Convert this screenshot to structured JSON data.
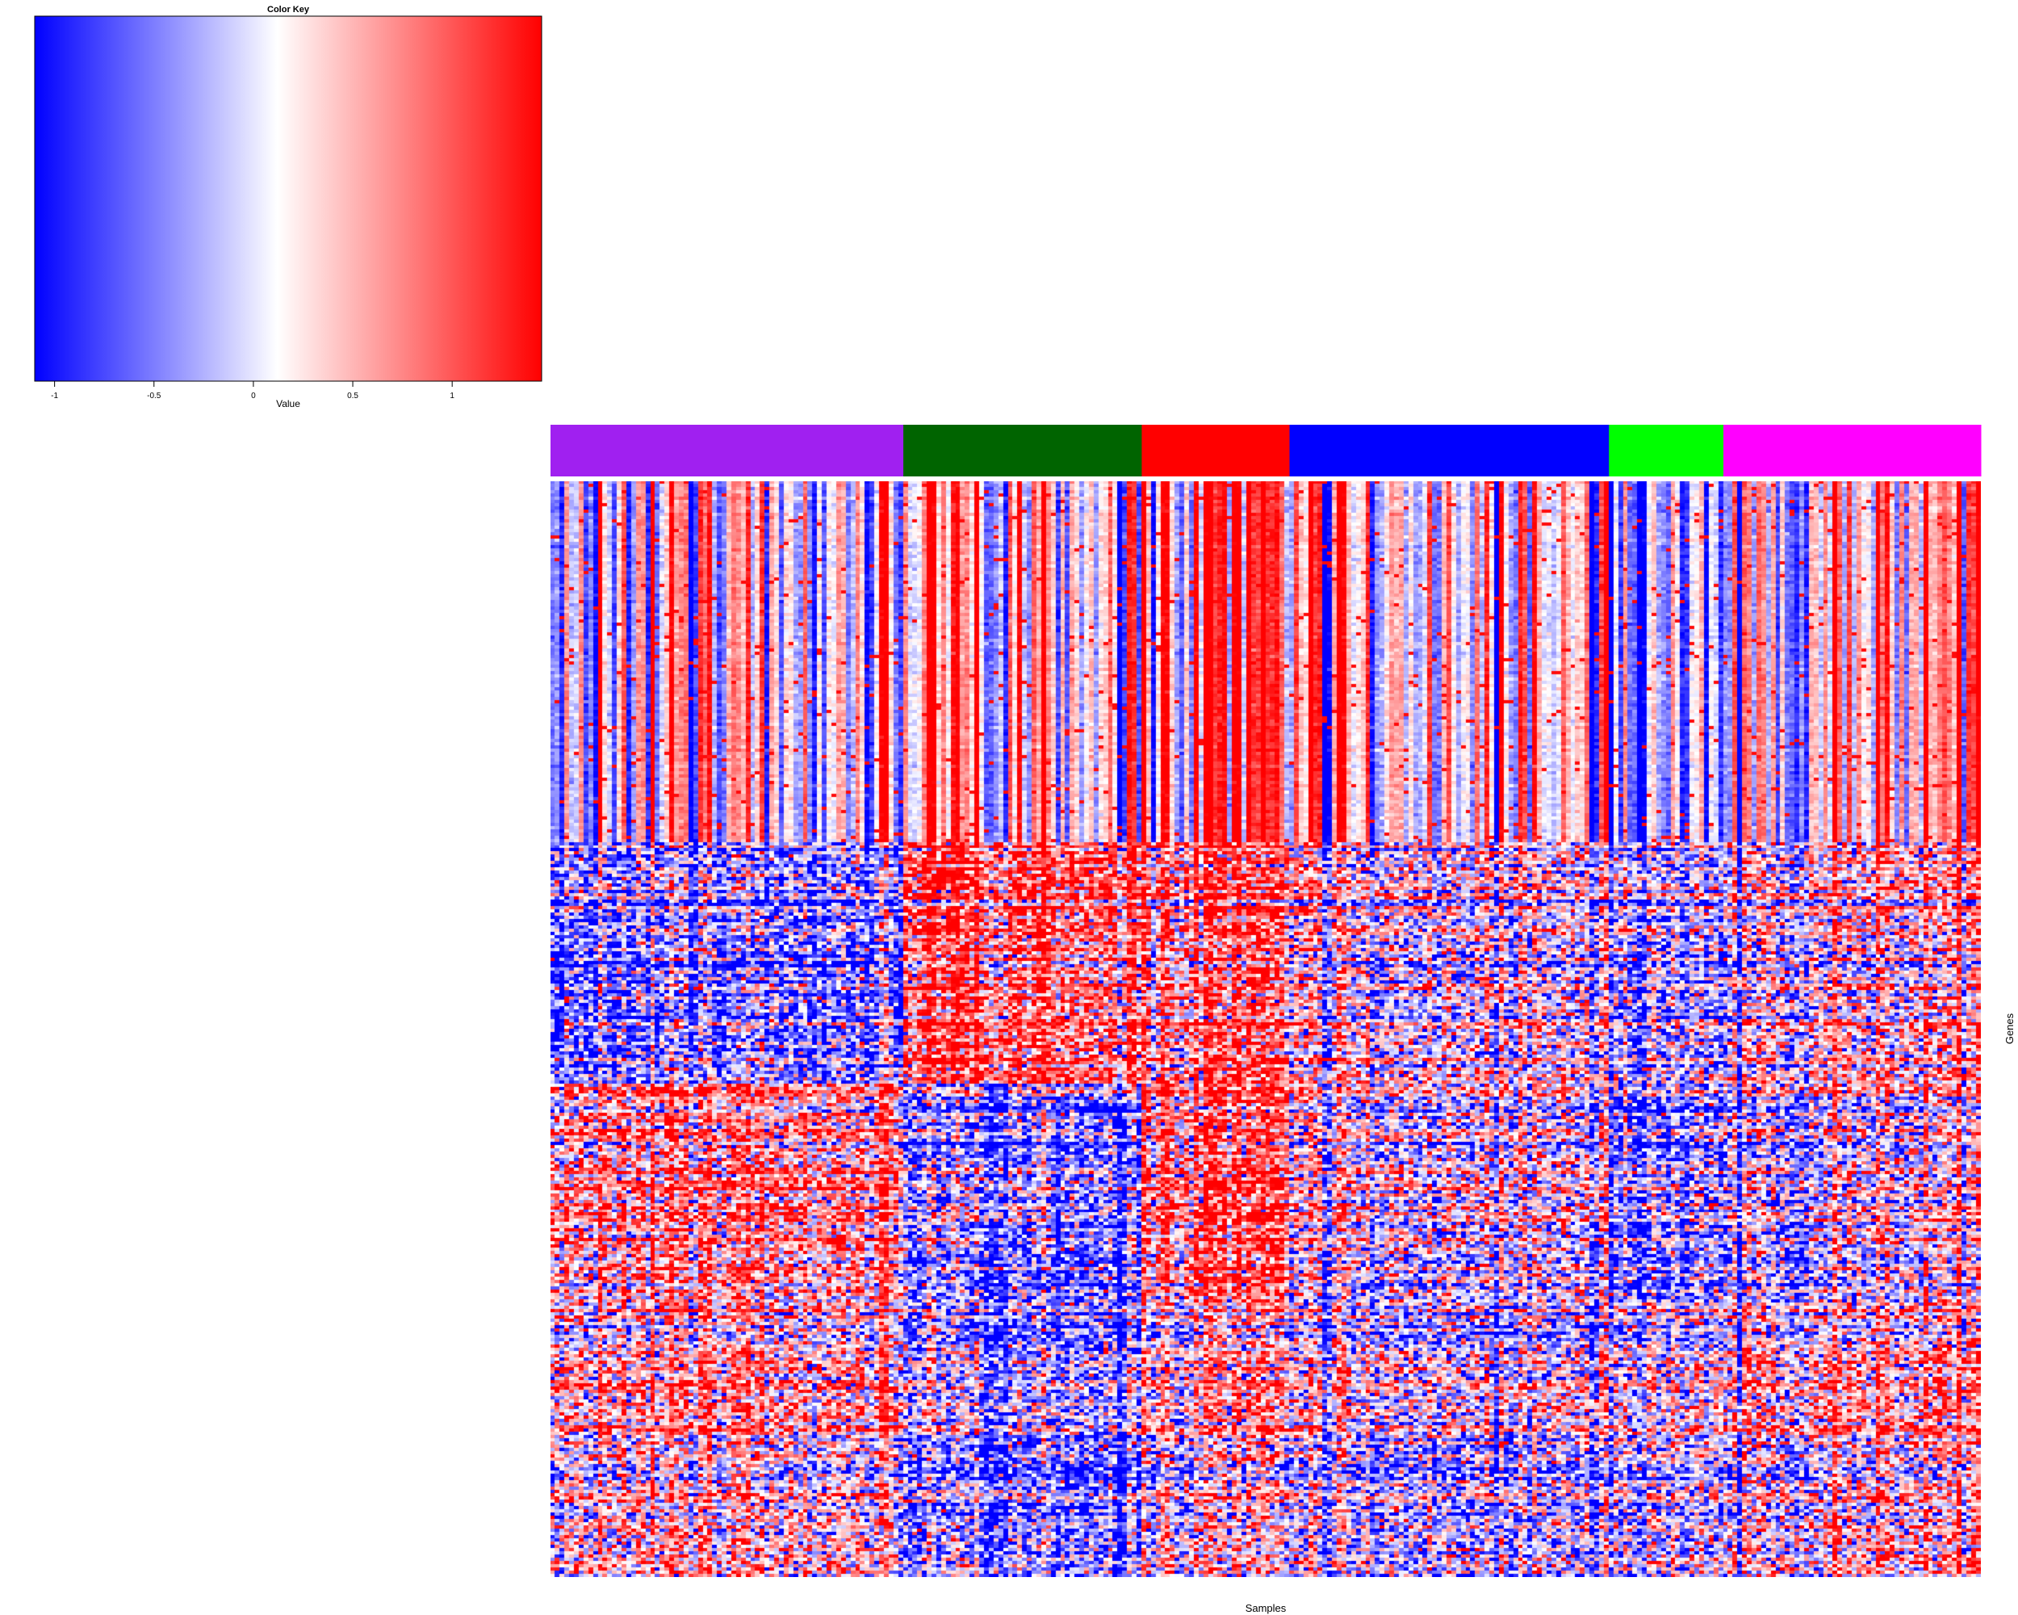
{
  "chart_data": {
    "type": "heatmap",
    "color_key": {
      "title": "Color Key",
      "xlabel": "Value",
      "range": [
        -1.1,
        1.45
      ],
      "tick_values": [
        -1,
        -0.5,
        0,
        0.5,
        1
      ],
      "tick_labels": [
        "-1",
        "-0.5",
        "0",
        "0.5",
        "1"
      ],
      "stops": [
        {
          "value": -1.1,
          "color": "#0000ff"
        },
        {
          "value": 0.12,
          "color": "#ffffff"
        },
        {
          "value": 1.45,
          "color": "#ff0000"
        }
      ]
    },
    "xlabel": "Samples",
    "ylabel": "Genes",
    "n_samples": 300,
    "n_genes": 340,
    "sample_groups": [
      {
        "color": "#a020f0",
        "count": 74
      },
      {
        "color": "#006400",
        "count": 50
      },
      {
        "color": "#ff0000",
        "count": 31
      },
      {
        "color": "#0000ff",
        "count": 67
      },
      {
        "color": "#00ff00",
        "count": 24
      },
      {
        "color": "#ff00ff",
        "count": 54
      }
    ],
    "gene_blocks": [
      {
        "name": "top",
        "fraction": 0.33,
        "group_means": [
          -0.1,
          0.2,
          0.9,
          0.1,
          -0.2,
          0.1
        ]
      },
      {
        "name": "upper-mid",
        "fraction": 0.22,
        "group_means": [
          -0.7,
          0.8,
          0.7,
          -0.1,
          -0.3,
          0.0
        ]
      },
      {
        "name": "mid",
        "fraction": 0.2,
        "group_means": [
          0.6,
          -0.6,
          0.9,
          0.0,
          -0.4,
          -0.1
        ]
      },
      {
        "name": "lower",
        "fraction": 0.25,
        "group_means": [
          0.3,
          -0.6,
          0.2,
          -0.2,
          0.0,
          0.2
        ]
      }
    ]
  }
}
